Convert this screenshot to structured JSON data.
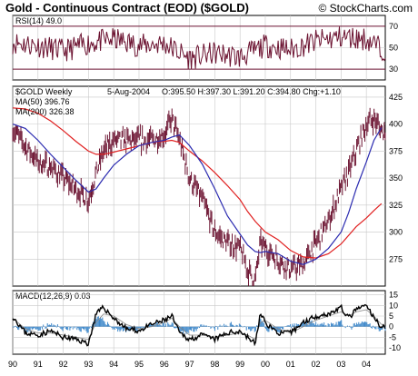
{
  "header": {
    "title": "Gold - Continuous Contract (EOD) ($GOLD)",
    "copyright": "© StockCharts.com"
  },
  "colors": {
    "price_bar": "#6b1230",
    "ma50": "#2b2bb0",
    "ma200": "#e02020",
    "rsi_line": "#6b1230",
    "rsi_band": "#6b1230",
    "macd_line": "#000000",
    "macd_hist": "#3b86c9",
    "grid": "#c8c8c8"
  },
  "chart_data": [
    {
      "type": "line",
      "panel": "rsi",
      "label": "RSI(14) 49.0",
      "ylim": [
        20,
        80
      ],
      "y_ticks": [
        "70",
        "50",
        "30"
      ],
      "reference_lines": [
        70,
        30
      ],
      "x_years": [
        1990,
        1991,
        1992,
        1993,
        1994,
        1995,
        1996,
        1997,
        1998,
        1999,
        2000,
        2001,
        2002,
        2003,
        2004,
        2004.6
      ],
      "rsi": [
        55,
        52,
        47,
        54,
        58,
        52,
        54,
        40,
        45,
        41,
        52,
        48,
        56,
        60,
        58,
        49
      ]
    },
    {
      "type": "bar",
      "panel": "price",
      "style": "ohlc-weekly",
      "label": "$GOLD Weekly",
      "date_label": "5-Aug-2004",
      "ohlc_text": "O:395.50 H:397.30 L:391.20 C:394.80 Chg:+1.10",
      "series": [
        {
          "name": "MA(50) 396.76"
        },
        {
          "name": "MA(200) 326.38"
        }
      ],
      "ylim": [
        250,
        435
      ],
      "y_ticks": [
        "425",
        "400",
        "375",
        "350",
        "325",
        "300",
        "275"
      ],
      "x_tick_labels": [
        "90",
        "91",
        "92",
        "93",
        "94",
        "95",
        "96",
        "97",
        "98",
        "99",
        "00",
        "01",
        "02",
        "03",
        "04"
      ],
      "x_years": [
        1990,
        1990.5,
        1991,
        1991.5,
        1992,
        1992.5,
        1993,
        1993.3,
        1993.6,
        1994,
        1994.5,
        1995,
        1995.5,
        1996,
        1996.3,
        1996.6,
        1997,
        1997.5,
        1998,
        1998.5,
        1999,
        1999.3,
        1999.6,
        1999.8,
        2000,
        2000.5,
        2001,
        2001.5,
        2002,
        2002.5,
        2003,
        2003.3,
        2003.6,
        2004,
        2004.3,
        2004.6
      ],
      "close": [
        395,
        380,
        365,
        360,
        350,
        340,
        330,
        355,
        375,
        385,
        385,
        385,
        385,
        390,
        405,
        385,
        350,
        330,
        300,
        290,
        285,
        265,
        255,
        290,
        285,
        275,
        265,
        270,
        290,
        310,
        340,
        355,
        375,
        400,
        405,
        394
      ],
      "ma50": [
        400,
        396,
        385,
        372,
        360,
        348,
        337,
        340,
        350,
        362,
        372,
        380,
        383,
        385,
        388,
        390,
        380,
        363,
        340,
        315,
        298,
        288,
        282,
        281,
        282,
        280,
        273,
        270,
        275,
        285,
        300,
        318,
        340,
        365,
        385,
        396.76
      ],
      "ma200": [
        415,
        414,
        410,
        403,
        394,
        384,
        375,
        372,
        372,
        374,
        377,
        380,
        383,
        384,
        385,
        383,
        375,
        366,
        355,
        343,
        330,
        319,
        310,
        305,
        300,
        293,
        283,
        277,
        276,
        280,
        289,
        297,
        305,
        313,
        320,
        326.38
      ]
    },
    {
      "type": "line",
      "panel": "macd",
      "label": "MACD(12,26,9) 0.03",
      "ylim": [
        -13,
        17
      ],
      "y_ticks": [
        "15",
        "10",
        "5",
        "0",
        "-5",
        "-10"
      ],
      "x_years": [
        1990,
        1990.5,
        1991,
        1991.5,
        1992,
        1992.5,
        1993,
        1993.3,
        1993.6,
        1994,
        1994.5,
        1995,
        1995.5,
        1996,
        1996.3,
        1996.6,
        1997,
        1997.5,
        1998,
        1998.5,
        1999,
        1999.3,
        1999.6,
        1999.8,
        2000,
        2000.5,
        2001,
        2001.5,
        2002,
        2002.5,
        2003,
        2003.3,
        2003.6,
        2004,
        2004.3,
        2004.6
      ],
      "macd": [
        5,
        -3,
        -4,
        -2,
        -5,
        -6,
        -8,
        6,
        9,
        4,
        -1,
        -2,
        1,
        3,
        5,
        -3,
        -6,
        -4,
        -6,
        -3,
        -2,
        -5,
        -8,
        6,
        2,
        -3,
        -3,
        2,
        5,
        6,
        9,
        4,
        8,
        10,
        4,
        0.03
      ],
      "signal": [
        4,
        -1,
        -3,
        -3,
        -4,
        -5,
        -6,
        2,
        6,
        5,
        1,
        -1,
        0,
        2,
        4,
        0,
        -4,
        -4,
        -5,
        -4,
        -3,
        -4,
        -6,
        2,
        3,
        -1,
        -3,
        0,
        3,
        5,
        7,
        5,
        7,
        8,
        5,
        1
      ]
    }
  ]
}
